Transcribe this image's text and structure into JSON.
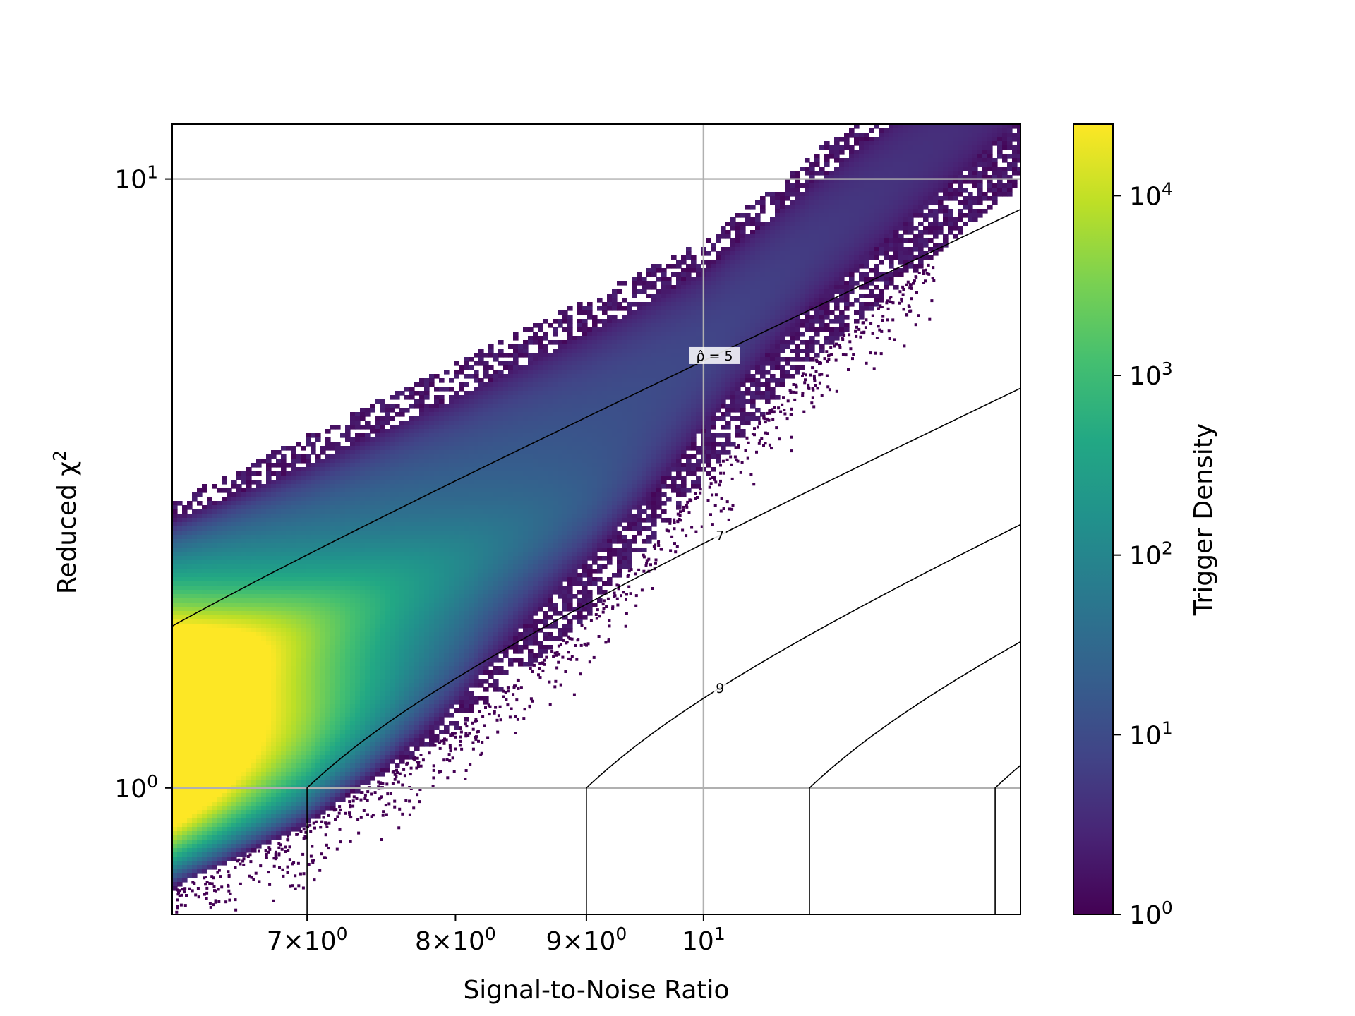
{
  "chart_data": {
    "type": "heatmap",
    "subtype": "hexbin-2d-histogram",
    "xscale": "log",
    "yscale": "log",
    "xlim": [
      6.2,
      13.3
    ],
    "ylim": [
      0.62,
      12.3
    ],
    "grid": true,
    "xlabel": "Signal-to-Noise Ratio",
    "ylabel": "Reduced χ²",
    "xlabel_parts": {
      "text": "Signal-to-Noise Ratio"
    },
    "ylabel_parts": {
      "text": "Reduced χ",
      "sup": "2"
    },
    "xticks": [
      {
        "value": 7,
        "mant": "7×10",
        "exp": "0"
      },
      {
        "value": 8,
        "mant": "8×10",
        "exp": "0"
      },
      {
        "value": 9,
        "mant": "9×10",
        "exp": "0"
      },
      {
        "value": 10,
        "mant": "10",
        "exp": "1"
      }
    ],
    "yticks": [
      {
        "value": 1,
        "mant": "10",
        "exp": "0"
      },
      {
        "value": 10,
        "mant": "10",
        "exp": "1"
      }
    ],
    "colorbar": {
      "label": "Trigger Density",
      "scale": "log",
      "colormap": "viridis",
      "range": [
        1,
        25000
      ],
      "ticks": [
        {
          "value": 1,
          "mant": "10",
          "exp": "0"
        },
        {
          "value": 10,
          "mant": "10",
          "exp": "1"
        },
        {
          "value": 100,
          "mant": "10",
          "exp": "2"
        },
        {
          "value": 1000,
          "mant": "10",
          "exp": "3"
        },
        {
          "value": 10000,
          "mant": "10",
          "exp": "4"
        }
      ]
    },
    "contours": {
      "description": "reweighted SNR ρ̂ = ρ for χ²≤1, ρ / ((1 + (χ²)³)/2)^(1/6) otherwise",
      "levels": [
        5,
        7,
        9,
        11,
        13
      ],
      "labels": [
        {
          "level": 5,
          "text": "ρ̂ = 5",
          "x": 10.1
        },
        {
          "level": 7,
          "text": "7",
          "x": 10.15
        },
        {
          "level": 9,
          "text": "9",
          "x": 10.15
        }
      ]
    },
    "density_region": {
      "upper_edge": [
        [
          6.2,
          2.95
        ],
        [
          10.0,
          7.9
        ],
        [
          10.6,
          9.6
        ]
      ],
      "lower_edge": [
        [
          6.2,
          0.68
        ],
        [
          7.0,
          0.87
        ],
        [
          8.0,
          1.25
        ],
        [
          9.0,
          1.9
        ],
        [
          10.0,
          3.2
        ],
        [
          11.0,
          5.0
        ],
        [
          12.1,
          7.0
        ]
      ],
      "peak": {
        "x": 6.2,
        "y": 1.1,
        "density": 25000
      }
    },
    "colors": {
      "grid": "#b0b0b0",
      "contour": "#000000",
      "axis": "#000000"
    }
  }
}
